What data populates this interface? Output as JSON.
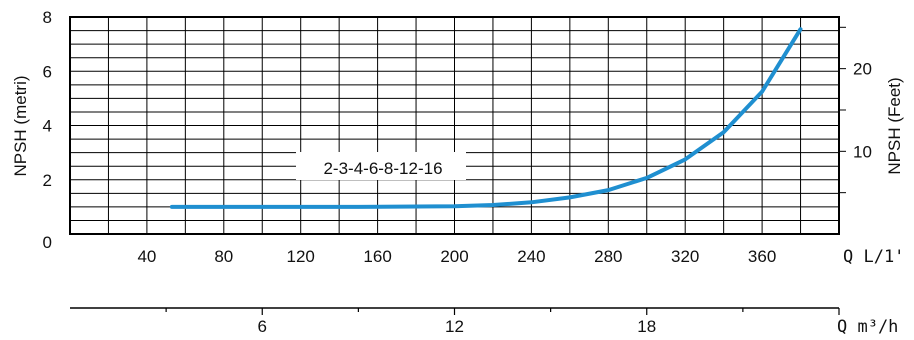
{
  "chart_data": {
    "type": "line",
    "annotation": "2-3-4-6-8-12-16",
    "left_axis": {
      "label": "NPSH (metri)",
      "ticks": [
        0,
        2,
        4,
        6,
        8
      ],
      "ylim": [
        0,
        8
      ]
    },
    "right_axis": {
      "label": "NPSH (Feet)",
      "ticks": [
        10,
        20
      ]
    },
    "x_axis_primary": {
      "label": "Q L/1'",
      "ticks": [
        40,
        80,
        120,
        160,
        200,
        240,
        280,
        320,
        360
      ],
      "xlim": [
        0,
        400
      ]
    },
    "x_axis_secondary": {
      "label": "Q m³/h",
      "ticks": [
        6,
        12,
        18
      ]
    },
    "grid": true,
    "series": [
      {
        "color": "#1f8fd0",
        "x": [
          53,
          100,
          150,
          200,
          220,
          240,
          260,
          280,
          300,
          320,
          340,
          360,
          380
        ],
        "y": [
          1.0,
          1.0,
          1.0,
          1.02,
          1.07,
          1.17,
          1.35,
          1.62,
          2.07,
          2.75,
          3.75,
          5.25,
          7.55
        ]
      }
    ]
  }
}
